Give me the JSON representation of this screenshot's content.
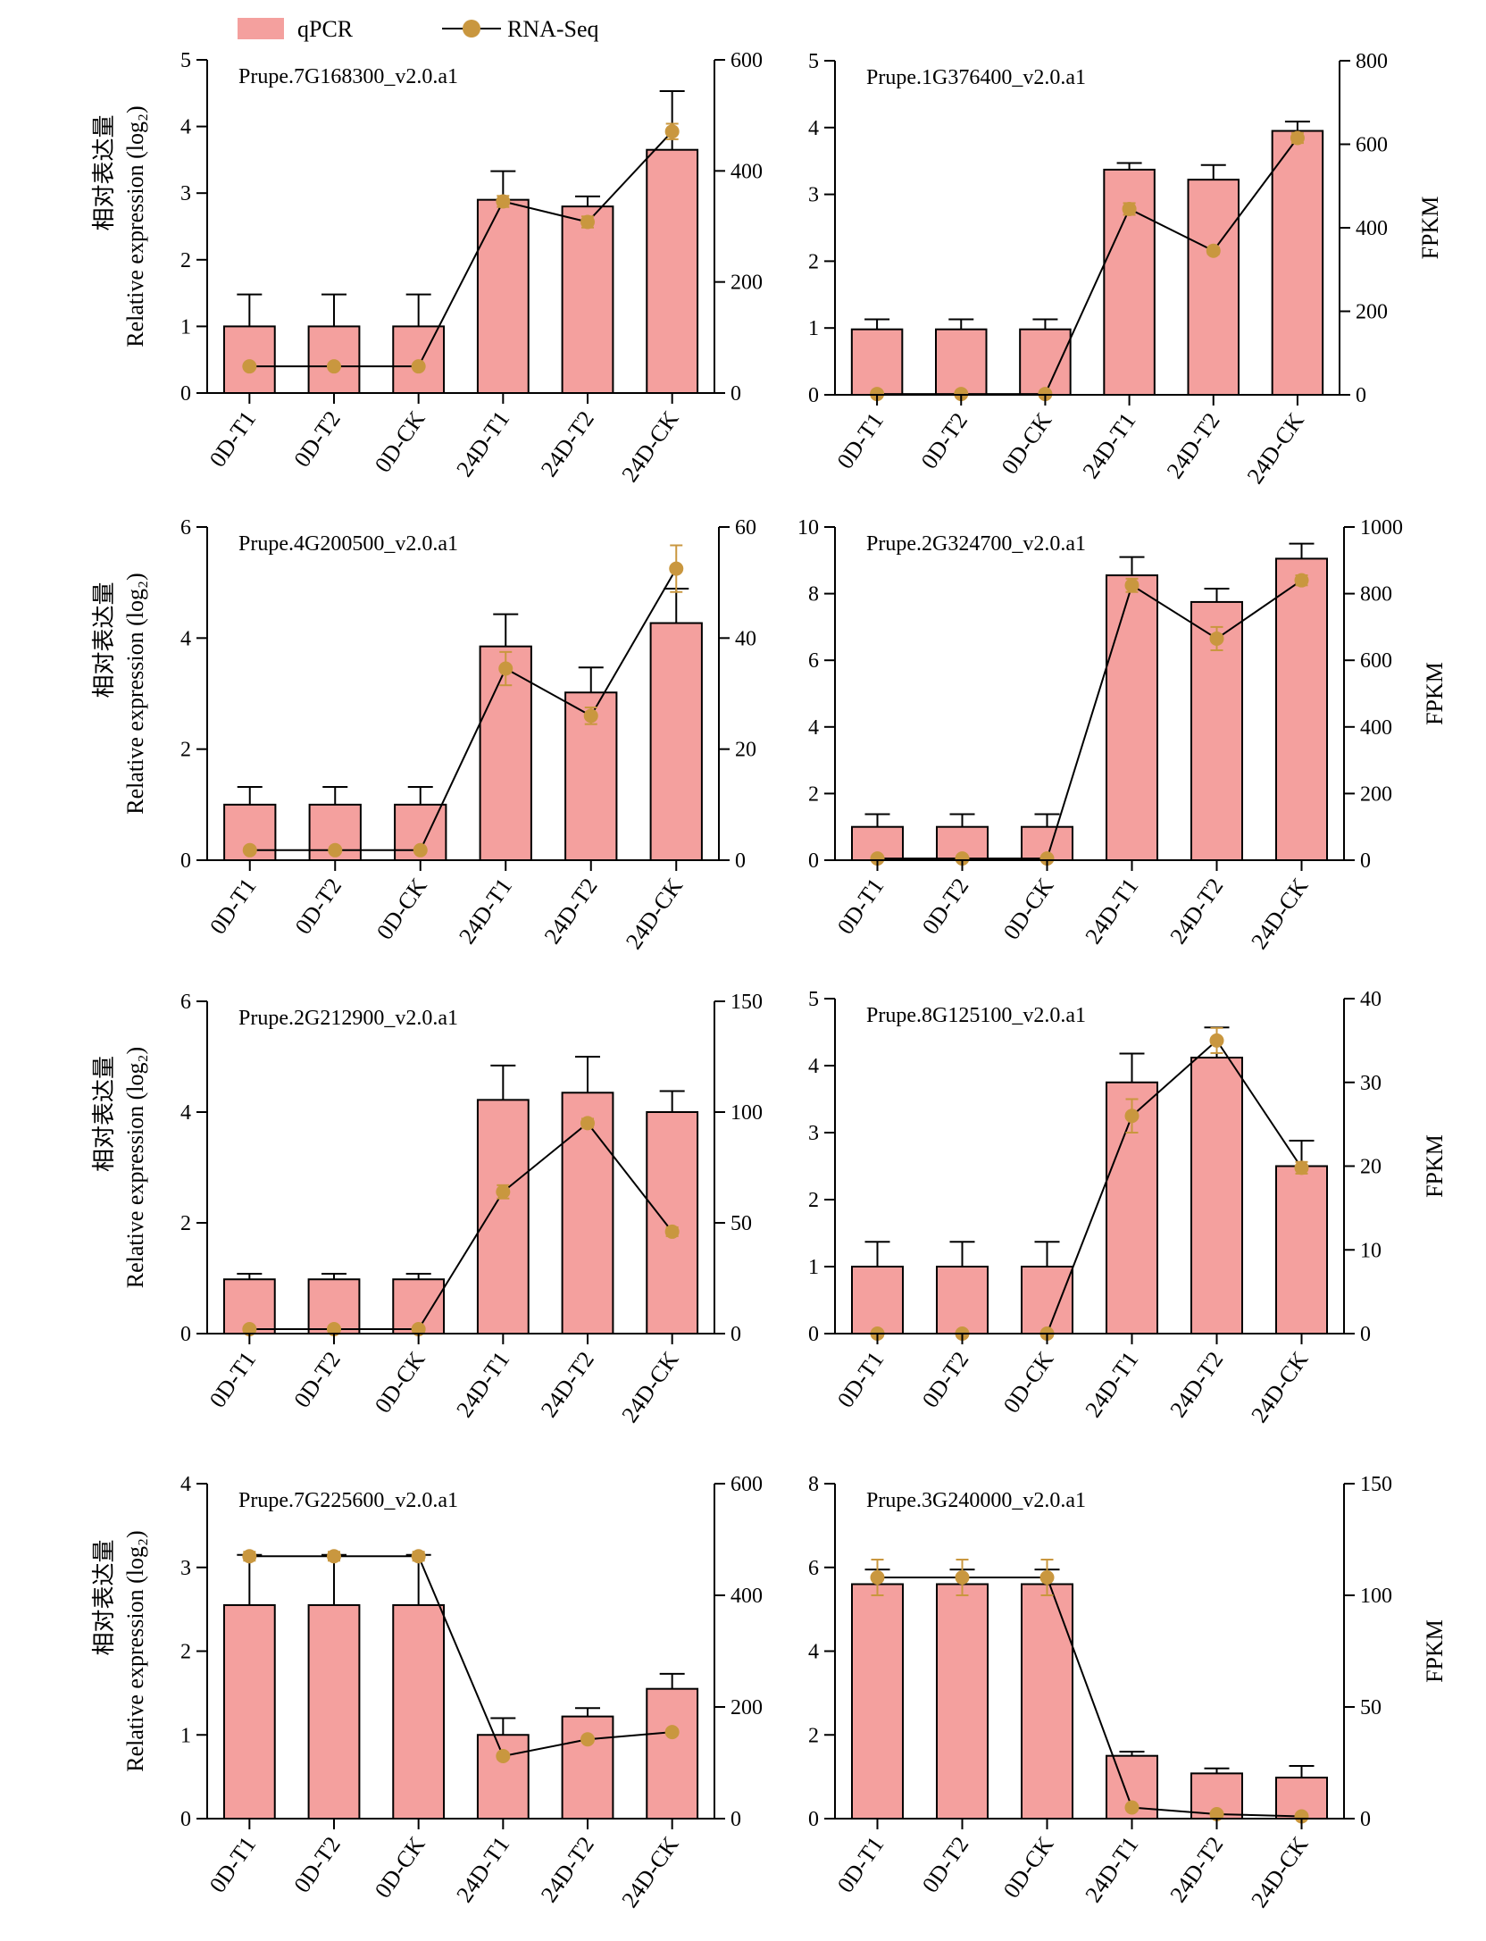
{
  "legend": {
    "bar_label": "qPCR",
    "line_label": "RNA-Seq"
  },
  "colors": {
    "bar_fill": "#f4a09e",
    "bar_stroke": "#000000",
    "marker": "#c9973f",
    "line": "#000000"
  },
  "y_left_label_cn": "相对表达量",
  "y_left_label_en": "Relative expression (log₂)",
  "y_right_label": "FPKM",
  "chart_data": [
    {
      "type": "bar+line",
      "title": "Prupe.7G168300_v2.0.a1",
      "categories": [
        "0D-T1",
        "0D-T2",
        "0D-CK",
        "24D-T1",
        "24D-T2",
        "24D-CK"
      ],
      "ylim": [
        0,
        5
      ],
      "yticks": [
        0,
        1,
        2,
        3,
        4,
        5
      ],
      "y2lim": [
        0,
        600
      ],
      "y2ticks": [
        0,
        200,
        400,
        600
      ],
      "show_left_label": true,
      "show_right_label": false,
      "series": [
        {
          "name": "qPCR",
          "values": [
            1,
            1,
            1,
            2.9,
            2.8,
            3.65
          ],
          "errors": [
            0.48,
            0.48,
            0.48,
            0.43,
            0.15,
            0.88
          ]
        },
        {
          "name": "RNA-Seq",
          "values": [
            48,
            48,
            48,
            345,
            308,
            471
          ],
          "errors": [
            4,
            4,
            4,
            10,
            10,
            14
          ]
        }
      ]
    },
    {
      "type": "bar+line",
      "title": "Prupe.1G376400_v2.0.a1",
      "categories": [
        "0D-T1",
        "0D-T2",
        "0D-CK",
        "24D-T1",
        "24D-T2",
        "24D-CK"
      ],
      "ylim": [
        0,
        5
      ],
      "yticks": [
        0,
        1,
        2,
        3,
        4,
        5
      ],
      "y2lim": [
        0,
        800
      ],
      "y2ticks": [
        0,
        200,
        400,
        600,
        800
      ],
      "show_left_label": false,
      "show_right_label": true,
      "series": [
        {
          "name": "qPCR",
          "values": [
            0.98,
            0.98,
            0.98,
            3.37,
            3.22,
            3.95
          ],
          "errors": [
            0.15,
            0.15,
            0.15,
            0.1,
            0.22,
            0.14
          ]
        },
        {
          "name": "RNA-Seq",
          "values": [
            2,
            2,
            2,
            445,
            345,
            615
          ],
          "errors": [
            3,
            3,
            3,
            14,
            8,
            12
          ]
        }
      ]
    },
    {
      "type": "bar+line",
      "title": "Prupe.4G200500_v2.0.a1",
      "categories": [
        "0D-T1",
        "0D-T2",
        "0D-CK",
        "24D-T1",
        "24D-T2",
        "24D-CK"
      ],
      "ylim": [
        0,
        6
      ],
      "yticks": [
        0,
        2,
        4,
        6
      ],
      "y2lim": [
        0,
        60
      ],
      "y2ticks": [
        0,
        20,
        40,
        60
      ],
      "show_left_label": true,
      "show_right_label": false,
      "series": [
        {
          "name": "qPCR",
          "values": [
            1,
            1,
            1,
            3.85,
            3.02,
            4.27
          ],
          "errors": [
            0.32,
            0.32,
            0.32,
            0.58,
            0.45,
            0.62
          ]
        },
        {
          "name": "RNA-Seq",
          "values": [
            1.8,
            1.8,
            1.8,
            34.5,
            26,
            52.5
          ],
          "errors": [
            0.4,
            0.4,
            0.4,
            3,
            1.5,
            4.2
          ]
        }
      ]
    },
    {
      "type": "bar+line",
      "title": "Prupe.2G324700_v2.0.a1",
      "categories": [
        "0D-T1",
        "0D-T2",
        "0D-CK",
        "24D-T1",
        "24D-T2",
        "24D-CK"
      ],
      "ylim": [
        0,
        10
      ],
      "yticks": [
        0,
        2,
        4,
        6,
        8,
        10
      ],
      "y2lim": [
        0,
        1000
      ],
      "y2ticks": [
        0,
        200,
        400,
        600,
        800,
        1000
      ],
      "show_left_label": false,
      "show_right_label": true,
      "series": [
        {
          "name": "qPCR",
          "values": [
            1,
            1,
            1,
            8.55,
            7.75,
            9.05
          ],
          "errors": [
            0.38,
            0.38,
            0.38,
            0.55,
            0.4,
            0.45
          ]
        },
        {
          "name": "RNA-Seq",
          "values": [
            5,
            5,
            5,
            825,
            665,
            840
          ],
          "errors": [
            5,
            5,
            5,
            20,
            35,
            15
          ]
        }
      ]
    },
    {
      "type": "bar+line",
      "title": "Prupe.2G212900_v2.0.a1",
      "categories": [
        "0D-T1",
        "0D-T2",
        "0D-CK",
        "24D-T1",
        "24D-T2",
        "24D-CK"
      ],
      "ylim": [
        0,
        6
      ],
      "yticks": [
        0,
        2,
        4,
        6
      ],
      "y2lim": [
        0,
        150
      ],
      "y2ticks": [
        0,
        50,
        100,
        150
      ],
      "show_left_label": true,
      "show_right_label": false,
      "series": [
        {
          "name": "qPCR",
          "values": [
            0.98,
            0.98,
            0.98,
            4.22,
            4.35,
            4.0
          ],
          "errors": [
            0.1,
            0.1,
            0.1,
            0.62,
            0.65,
            0.38
          ]
        },
        {
          "name": "RNA-Seq",
          "values": [
            2,
            2,
            2,
            64,
            95,
            46
          ],
          "errors": [
            1,
            1,
            1,
            3,
            2,
            2
          ]
        }
      ]
    },
    {
      "type": "bar+line",
      "title": "Prupe.8G125100_v2.0.a1",
      "categories": [
        "0D-T1",
        "0D-T2",
        "0D-CK",
        "24D-T1",
        "24D-T2",
        "24D-CK"
      ],
      "ylim": [
        0,
        5
      ],
      "yticks": [
        0,
        1,
        2,
        3,
        4,
        5
      ],
      "y2lim": [
        0,
        40
      ],
      "y2ticks": [
        0,
        10,
        20,
        30,
        40
      ],
      "show_left_label": false,
      "show_right_label": true,
      "series": [
        {
          "name": "qPCR",
          "values": [
            1,
            1,
            1,
            3.75,
            4.12,
            2.5
          ],
          "errors": [
            0.37,
            0.37,
            0.37,
            0.43,
            0.45,
            0.38
          ]
        },
        {
          "name": "RNA-Seq",
          "values": [
            0,
            0,
            0,
            26,
            35,
            19.8
          ],
          "errors": [
            0.3,
            0.3,
            0.3,
            2,
            1.5,
            0.7
          ]
        }
      ]
    },
    {
      "type": "bar+line",
      "title": "Prupe.7G225600_v2.0.a1",
      "categories": [
        "0D-T1",
        "0D-T2",
        "0D-CK",
        "24D-T1",
        "24D-T2",
        "24D-CK"
      ],
      "ylim": [
        0,
        4
      ],
      "yticks": [
        0,
        1,
        2,
        3,
        4
      ],
      "y2lim": [
        0,
        600
      ],
      "y2ticks": [
        0,
        200,
        400,
        600
      ],
      "show_left_label": true,
      "show_right_label": false,
      "series": [
        {
          "name": "qPCR",
          "values": [
            2.55,
            2.55,
            2.55,
            1.0,
            1.22,
            1.55
          ],
          "errors": [
            0.6,
            0.6,
            0.6,
            0.2,
            0.1,
            0.18
          ]
        },
        {
          "name": "RNA-Seq",
          "values": [
            470,
            470,
            470,
            112,
            142,
            155
          ],
          "errors": [
            8,
            8,
            8,
            5,
            5,
            5
          ]
        }
      ]
    },
    {
      "type": "bar+line",
      "title": "Prupe.3G240000_v2.0.a1",
      "categories": [
        "0D-T1",
        "0D-T2",
        "0D-CK",
        "24D-T1",
        "24D-T2",
        "24D-CK"
      ],
      "ylim": [
        0,
        8
      ],
      "yticks": [
        0,
        2,
        4,
        6,
        8
      ],
      "y2lim": [
        0,
        150
      ],
      "y2ticks": [
        0,
        50,
        100,
        150
      ],
      "show_left_label": false,
      "show_right_label": true,
      "series": [
        {
          "name": "qPCR",
          "values": [
            5.6,
            5.6,
            5.6,
            1.5,
            1.08,
            0.98
          ],
          "errors": [
            0.35,
            0.35,
            0.35,
            0.1,
            0.12,
            0.28
          ]
        },
        {
          "name": "RNA-Seq",
          "values": [
            108,
            108,
            108,
            5,
            2,
            1
          ],
          "errors": [
            8,
            8,
            8,
            1,
            1,
            1
          ]
        }
      ]
    }
  ]
}
